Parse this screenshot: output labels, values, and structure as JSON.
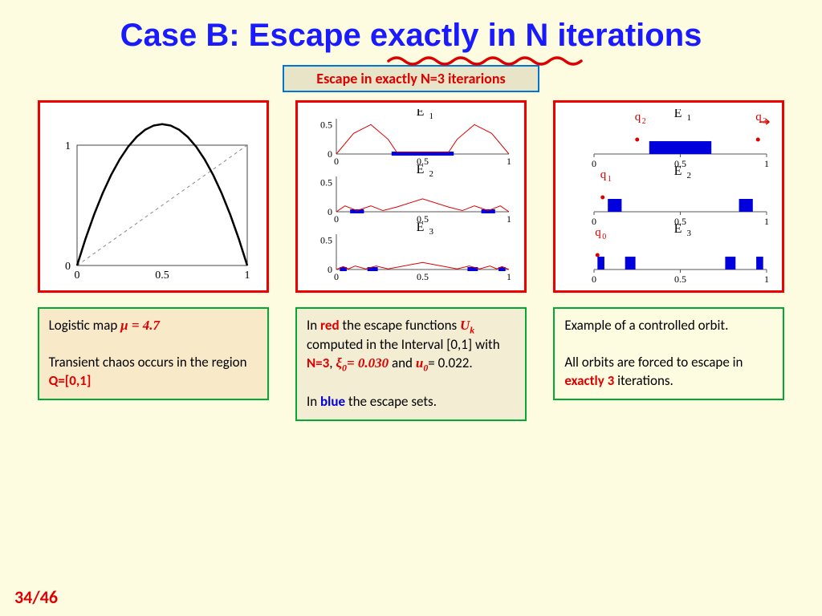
{
  "title_parts": {
    "a": "Case B: Escape ",
    "b": "exactly in N",
    "c": " iterations"
  },
  "subtitle": "Escape in exactly N=3 iterarions",
  "pagenum": "34/46",
  "panel1": {
    "type": "line",
    "xlim": [
      0,
      1
    ],
    "ylim": [
      0,
      1.2
    ],
    "xticks": [
      0,
      0.5,
      1
    ],
    "yticks": [
      0,
      1
    ],
    "curve_color": "#000000",
    "curve_width": 2.5,
    "diag_dash": "4,4",
    "diag_color": "#888888",
    "box_color": "#444444",
    "mu": 4.7,
    "points": [
      [
        0.0,
        0.0
      ],
      [
        0.05,
        0.223
      ],
      [
        0.1,
        0.423
      ],
      [
        0.15,
        0.599
      ],
      [
        0.2,
        0.752
      ],
      [
        0.25,
        0.881
      ],
      [
        0.3,
        0.987
      ],
      [
        0.35,
        1.069
      ],
      [
        0.4,
        1.128
      ],
      [
        0.45,
        1.163
      ],
      [
        0.5,
        1.175
      ],
      [
        0.55,
        1.163
      ],
      [
        0.6,
        1.128
      ],
      [
        0.65,
        1.069
      ],
      [
        0.7,
        0.987
      ],
      [
        0.75,
        0.881
      ],
      [
        0.8,
        0.752
      ],
      [
        0.85,
        0.599
      ],
      [
        0.9,
        0.423
      ],
      [
        0.95,
        0.223
      ],
      [
        1.0,
        0.0
      ]
    ]
  },
  "panel2": {
    "type": "stacked-line",
    "bg": "#ffffff",
    "sub_labels": [
      "E",
      "E",
      "E"
    ],
    "sub_subscripts": [
      "1",
      "2",
      "3"
    ],
    "xlim": [
      0,
      1
    ],
    "xticks": [
      "0",
      "0.5",
      "1"
    ],
    "yticks": [
      "0",
      "0.5"
    ],
    "curve_color": "#dd0000",
    "escape_color": "#0000dd",
    "axis_color": "#555555",
    "series": [
      {
        "curve": [
          [
            0,
            0
          ],
          [
            0.1,
            0.35
          ],
          [
            0.2,
            0.5
          ],
          [
            0.3,
            0.25
          ],
          [
            0.35,
            0.03
          ],
          [
            0.65,
            0.03
          ],
          [
            0.7,
            0.25
          ],
          [
            0.8,
            0.5
          ],
          [
            0.9,
            0.35
          ],
          [
            1,
            0
          ]
        ],
        "escape_segments": [
          [
            0.32,
            0.68
          ]
        ]
      },
      {
        "curve": [
          [
            0,
            0
          ],
          [
            0.05,
            0.1
          ],
          [
            0.12,
            0.02
          ],
          [
            0.2,
            0.1
          ],
          [
            0.27,
            0.02
          ],
          [
            0.35,
            0.08
          ],
          [
            0.5,
            0.22
          ],
          [
            0.65,
            0.08
          ],
          [
            0.73,
            0.02
          ],
          [
            0.8,
            0.1
          ],
          [
            0.88,
            0.02
          ],
          [
            0.95,
            0.1
          ],
          [
            1,
            0
          ]
        ],
        "escape_segments": [
          [
            0.08,
            0.16
          ],
          [
            0.84,
            0.92
          ]
        ]
      },
      {
        "curve": [
          [
            0,
            0
          ],
          [
            0.04,
            0.05
          ],
          [
            0.07,
            0.01
          ],
          [
            0.11,
            0.06
          ],
          [
            0.17,
            0.01
          ],
          [
            0.23,
            0.06
          ],
          [
            0.3,
            0.01
          ],
          [
            0.5,
            0.12
          ],
          [
            0.7,
            0.01
          ],
          [
            0.77,
            0.06
          ],
          [
            0.83,
            0.01
          ],
          [
            0.89,
            0.06
          ],
          [
            0.93,
            0.01
          ],
          [
            0.96,
            0.05
          ],
          [
            1,
            0
          ]
        ],
        "escape_segments": [
          [
            0.02,
            0.06
          ],
          [
            0.18,
            0.24
          ],
          [
            0.76,
            0.82
          ],
          [
            0.94,
            0.98
          ]
        ]
      }
    ]
  },
  "panel3": {
    "type": "stacked-bars",
    "bg": "#ffffff",
    "sub_labels": [
      "E",
      "E",
      "E"
    ],
    "sub_subscripts": [
      "1",
      "2",
      "3"
    ],
    "xlim": [
      0,
      1
    ],
    "xticks": [
      "0",
      "0.5",
      "1"
    ],
    "axis_color": "#555555",
    "bar_color": "#0000dd",
    "q_color": "#dd0000",
    "rows": [
      {
        "bars": [
          [
            0.32,
            0.68
          ]
        ],
        "q_labels": [
          {
            "text": "q",
            "sub": "2",
            "x": 0.25
          },
          {
            "text": "q",
            "sub": "3",
            "x": 0.95,
            "arrow": true
          }
        ]
      },
      {
        "bars": [
          [
            0.08,
            0.16
          ],
          [
            0.84,
            0.92
          ]
        ],
        "q_labels": [
          {
            "text": "q",
            "sub": "1",
            "x": 0.05
          }
        ]
      },
      {
        "bars": [
          [
            0.02,
            0.06
          ],
          [
            0.18,
            0.24
          ],
          [
            0.76,
            0.82
          ],
          [
            0.94,
            0.98
          ]
        ],
        "q_labels": [
          {
            "text": "q",
            "sub": "0",
            "x": 0.02
          }
        ]
      }
    ]
  },
  "caption1": {
    "line1_a": "Logistic map ",
    "line1_b": "μ = 4.7",
    "line2": "Transient chaos occurs in the region ",
    "line2_b": "Q=[0,1]"
  },
  "caption2": {
    "p1_a": "In ",
    "p1_b": "red",
    "p1_c": " the escape functions ",
    "p1_d": "U",
    "p1_dsub": "k",
    "p1_e": " computed in the Interval [0,1] with ",
    "p1_f": "N=3",
    "p1_g": ",   ",
    "p1_h": "ξ",
    "p1_hsub": "0",
    "p1_i": "= 0.030",
    "p1_j": " and ",
    "p1_k": "u",
    "p1_ksub": "0",
    "p1_l": "= 0.022",
    "p2_a": "In ",
    "p2_b": "blue",
    "p2_c": " the escape sets."
  },
  "caption3": {
    "p1": "Example of a controlled orbit.",
    "p2_a": "All orbits are forced to escape in ",
    "p2_b": "exactly 3",
    "p2_c": " iterations."
  }
}
